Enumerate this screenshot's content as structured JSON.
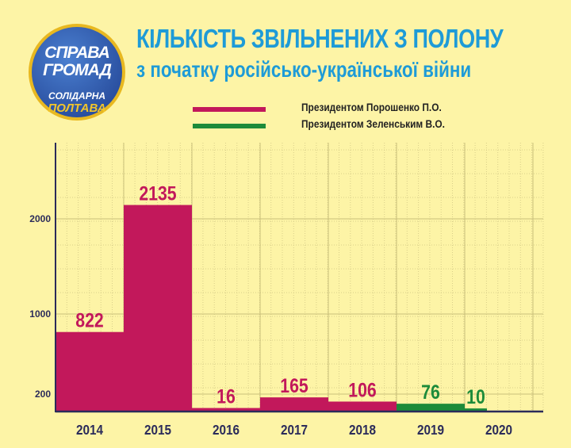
{
  "logo": {
    "line1": "СПРАВА",
    "line2": "ГРОМАД",
    "line3": "СОЛІДАРНА",
    "line4": "ПОЛТАВА"
  },
  "title": "КІЛЬКІСТЬ ЗВІЛЬНЕНИХ З ПОЛОНУ",
  "subtitle": "з початку російсько-української війни",
  "colors": {
    "poroshenko": "#c2185b",
    "zelensky": "#1c8b3a",
    "title": "#1e9bd7"
  },
  "chart_data": {
    "type": "bar",
    "title": "КІЛЬКІСТЬ ЗВІЛЬНЕНИХ З ПОЛОНУ",
    "categories": [
      "2014",
      "2015",
      "2016",
      "2017",
      "2018",
      "2019",
      "2020"
    ],
    "values": [
      822,
      2135,
      16,
      165,
      106,
      76,
      10
    ],
    "series_of_bar": [
      "poroshenko",
      "poroshenko",
      "poroshenko",
      "poroshenko",
      "poroshenko",
      "zelensky",
      "zelensky"
    ],
    "legend": [
      {
        "key": "poroshenko",
        "label": "Президентом Порошенко П.О."
      },
      {
        "key": "zelensky",
        "label": "Президентом Зеленським В.О."
      }
    ],
    "yticks": [
      "200",
      "1000",
      "2000"
    ],
    "legend_position": "top-right",
    "grid": true
  }
}
